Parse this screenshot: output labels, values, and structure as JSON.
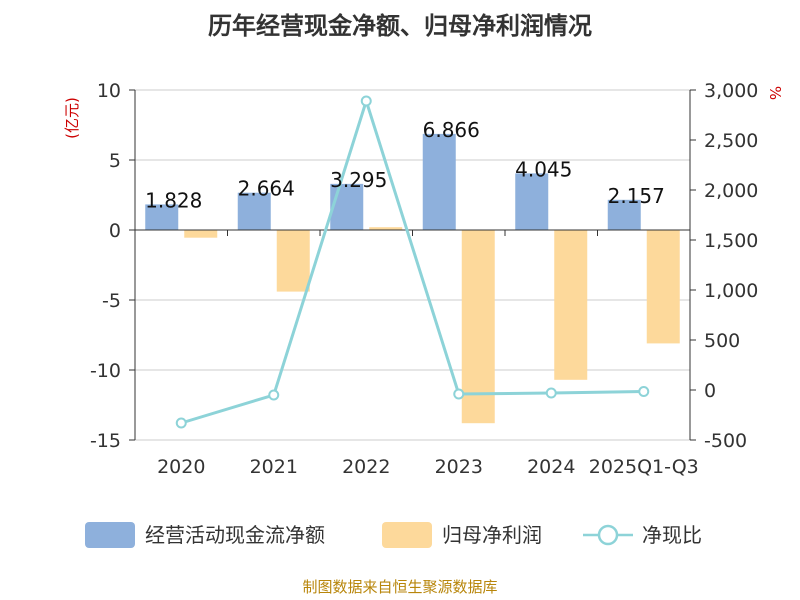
{
  "chart_data": {
    "type": "bar",
    "title": "历年经营现金净额、归母净利润情况",
    "categories": [
      "2020",
      "2021",
      "2022",
      "2023",
      "2024",
      "2025Q1-Q3"
    ],
    "left_axis": {
      "unit": "(亿元)",
      "range": [
        -15,
        10
      ],
      "ticks": [
        10,
        5,
        0,
        -5,
        -10,
        -15
      ]
    },
    "right_axis": {
      "unit": "%",
      "range": [
        -500,
        3000
      ],
      "ticks": [
        "3,000",
        "2,500",
        "2,000",
        "1,500",
        "1,000",
        "500",
        "0",
        "-500"
      ],
      "tick_values": [
        3000,
        2500,
        2000,
        1500,
        1000,
        500,
        0,
        -500
      ]
    },
    "series": [
      {
        "name": "经营活动现金流净额",
        "type": "bar",
        "axis": "left",
        "color": "#8eb0dc",
        "values": [
          1.828,
          2.664,
          3.295,
          6.866,
          4.045,
          2.157
        ],
        "labels": [
          "1.828",
          "2.664",
          "3.295",
          "6.866",
          "4.045",
          "2.157"
        ]
      },
      {
        "name": "归母净利润",
        "type": "bar",
        "axis": "left",
        "color": "#fdd99b",
        "values": [
          -0.55,
          -4.4,
          0.2,
          -13.8,
          -10.7,
          -8.1
        ]
      },
      {
        "name": "净现比",
        "type": "line",
        "axis": "right",
        "color": "#8dd3d8",
        "values": [
          -330,
          -50,
          2890,
          -40,
          -30,
          -15
        ]
      }
    ],
    "source": "制图数据来自恒生聚源数据库"
  }
}
